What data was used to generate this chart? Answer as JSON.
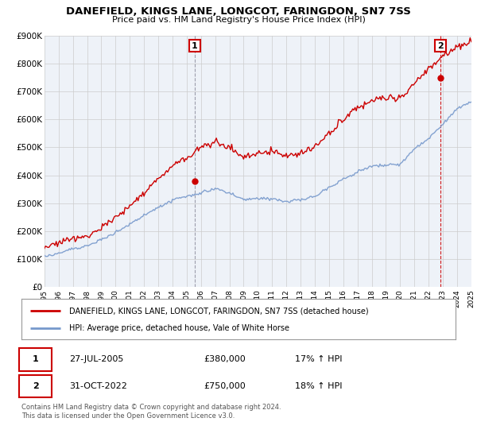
{
  "title": "DANEFIELD, KINGS LANE, LONGCOT, FARINGDON, SN7 7SS",
  "subtitle": "Price paid vs. HM Land Registry's House Price Index (HPI)",
  "ylim": [
    0,
    900000
  ],
  "yticks": [
    0,
    100000,
    200000,
    300000,
    400000,
    500000,
    600000,
    700000,
    800000,
    900000
  ],
  "ytick_labels": [
    "£0",
    "£100K",
    "£200K",
    "£300K",
    "£400K",
    "£500K",
    "£600K",
    "£700K",
    "£800K",
    "£900K"
  ],
  "background_color": "#ffffff",
  "plot_bg_color": "#eef2f8",
  "grid_color": "#cccccc",
  "red_line_color": "#cc0000",
  "blue_line_color": "#7799cc",
  "marker1_x": 2005.57,
  "marker1_y": 380000,
  "marker1_label": "1",
  "marker1_line_color": "#888899",
  "marker2_x": 2022.83,
  "marker2_y": 750000,
  "marker2_label": "2",
  "marker2_line_color": "#cc0000",
  "legend_entry1": "DANEFIELD, KINGS LANE, LONGCOT, FARINGDON, SN7 7SS (detached house)",
  "legend_entry2": "HPI: Average price, detached house, Vale of White Horse",
  "table_row1_num": "1",
  "table_row1_date": "27-JUL-2005",
  "table_row1_price": "£380,000",
  "table_row1_hpi": "17% ↑ HPI",
  "table_row2_num": "2",
  "table_row2_date": "31-OCT-2022",
  "table_row2_price": "£750,000",
  "table_row2_hpi": "18% ↑ HPI",
  "footer": "Contains HM Land Registry data © Crown copyright and database right 2024.\nThis data is licensed under the Open Government Licence v3.0.",
  "xmin": 1995,
  "xmax": 2025,
  "xticks": [
    1995,
    1996,
    1997,
    1998,
    1999,
    2000,
    2001,
    2002,
    2003,
    2004,
    2005,
    2006,
    2007,
    2008,
    2009,
    2010,
    2011,
    2012,
    2013,
    2014,
    2015,
    2016,
    2017,
    2018,
    2019,
    2020,
    2021,
    2022,
    2023,
    2024,
    2025
  ]
}
